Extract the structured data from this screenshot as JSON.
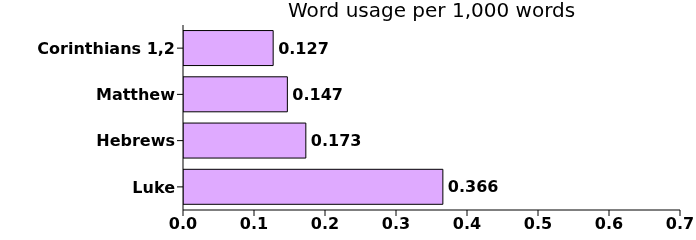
{
  "chart_data": {
    "type": "bar",
    "title": "Word usage per 1,000 words",
    "orientation": "horizontal",
    "categories": [
      "Corinthians 1,2",
      "Matthew",
      "Hebrews",
      "Luke"
    ],
    "values": [
      0.127,
      0.147,
      0.173,
      0.366
    ],
    "color": "#dfaaff",
    "xlim": [
      0,
      0.7
    ],
    "xticks": [
      {
        "value": 0,
        "label": "0.0"
      },
      0.1,
      0.2,
      0.3,
      0.4,
      0.5,
      0.6,
      0.7
    ],
    "data_labels": true,
    "grid": false
  }
}
